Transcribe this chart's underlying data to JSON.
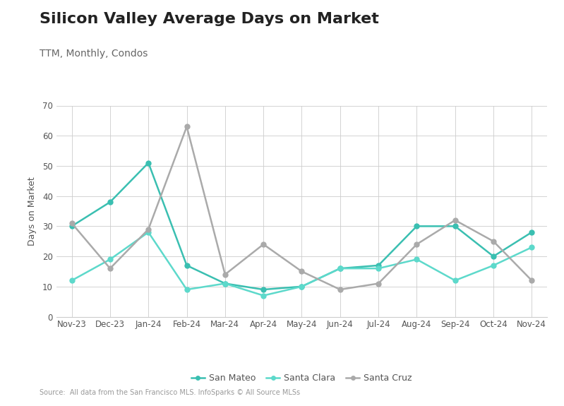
{
  "title": "Silicon Valley Average Days on Market",
  "subtitle": "TTM, Monthly, Condos",
  "ylabel": "Days on Market",
  "source": "Source:  All data from the San Francisco MLS. InfoSparks © All Source MLSs",
  "x_labels": [
    "Nov-23",
    "Dec-23",
    "Jan-24",
    "Feb-24",
    "Mar-24",
    "Apr-24",
    "May-24",
    "Jun-24",
    "Jul-24",
    "Aug-24",
    "Sep-24",
    "Oct-24",
    "Nov-24"
  ],
  "series": {
    "San Mateo": {
      "values": [
        30,
        38,
        51,
        17,
        11,
        9,
        10,
        16,
        17,
        30,
        30,
        20,
        28
      ],
      "color": "#3abfb1",
      "marker": "o"
    },
    "Santa Clara": {
      "values": [
        12,
        19,
        28,
        9,
        11,
        7,
        10,
        16,
        16,
        19,
        12,
        17,
        23
      ],
      "color": "#5dd9cb",
      "marker": "o"
    },
    "Santa Cruz": {
      "values": [
        31,
        16,
        29,
        63,
        14,
        24,
        15,
        9,
        11,
        24,
        32,
        25,
        12
      ],
      "color": "#aaaaaa",
      "marker": "o"
    }
  },
  "ylim": [
    0,
    70
  ],
  "yticks": [
    0,
    10,
    20,
    30,
    40,
    50,
    60,
    70
  ],
  "background_color": "#ffffff",
  "plot_bg_color": "#ffffff",
  "grid_color": "#cccccc",
  "title_fontsize": 16,
  "subtitle_fontsize": 10,
  "axis_label_fontsize": 9,
  "tick_fontsize": 8.5,
  "legend_fontsize": 9,
  "source_fontsize": 7,
  "line_width": 1.8,
  "marker_size": 5
}
